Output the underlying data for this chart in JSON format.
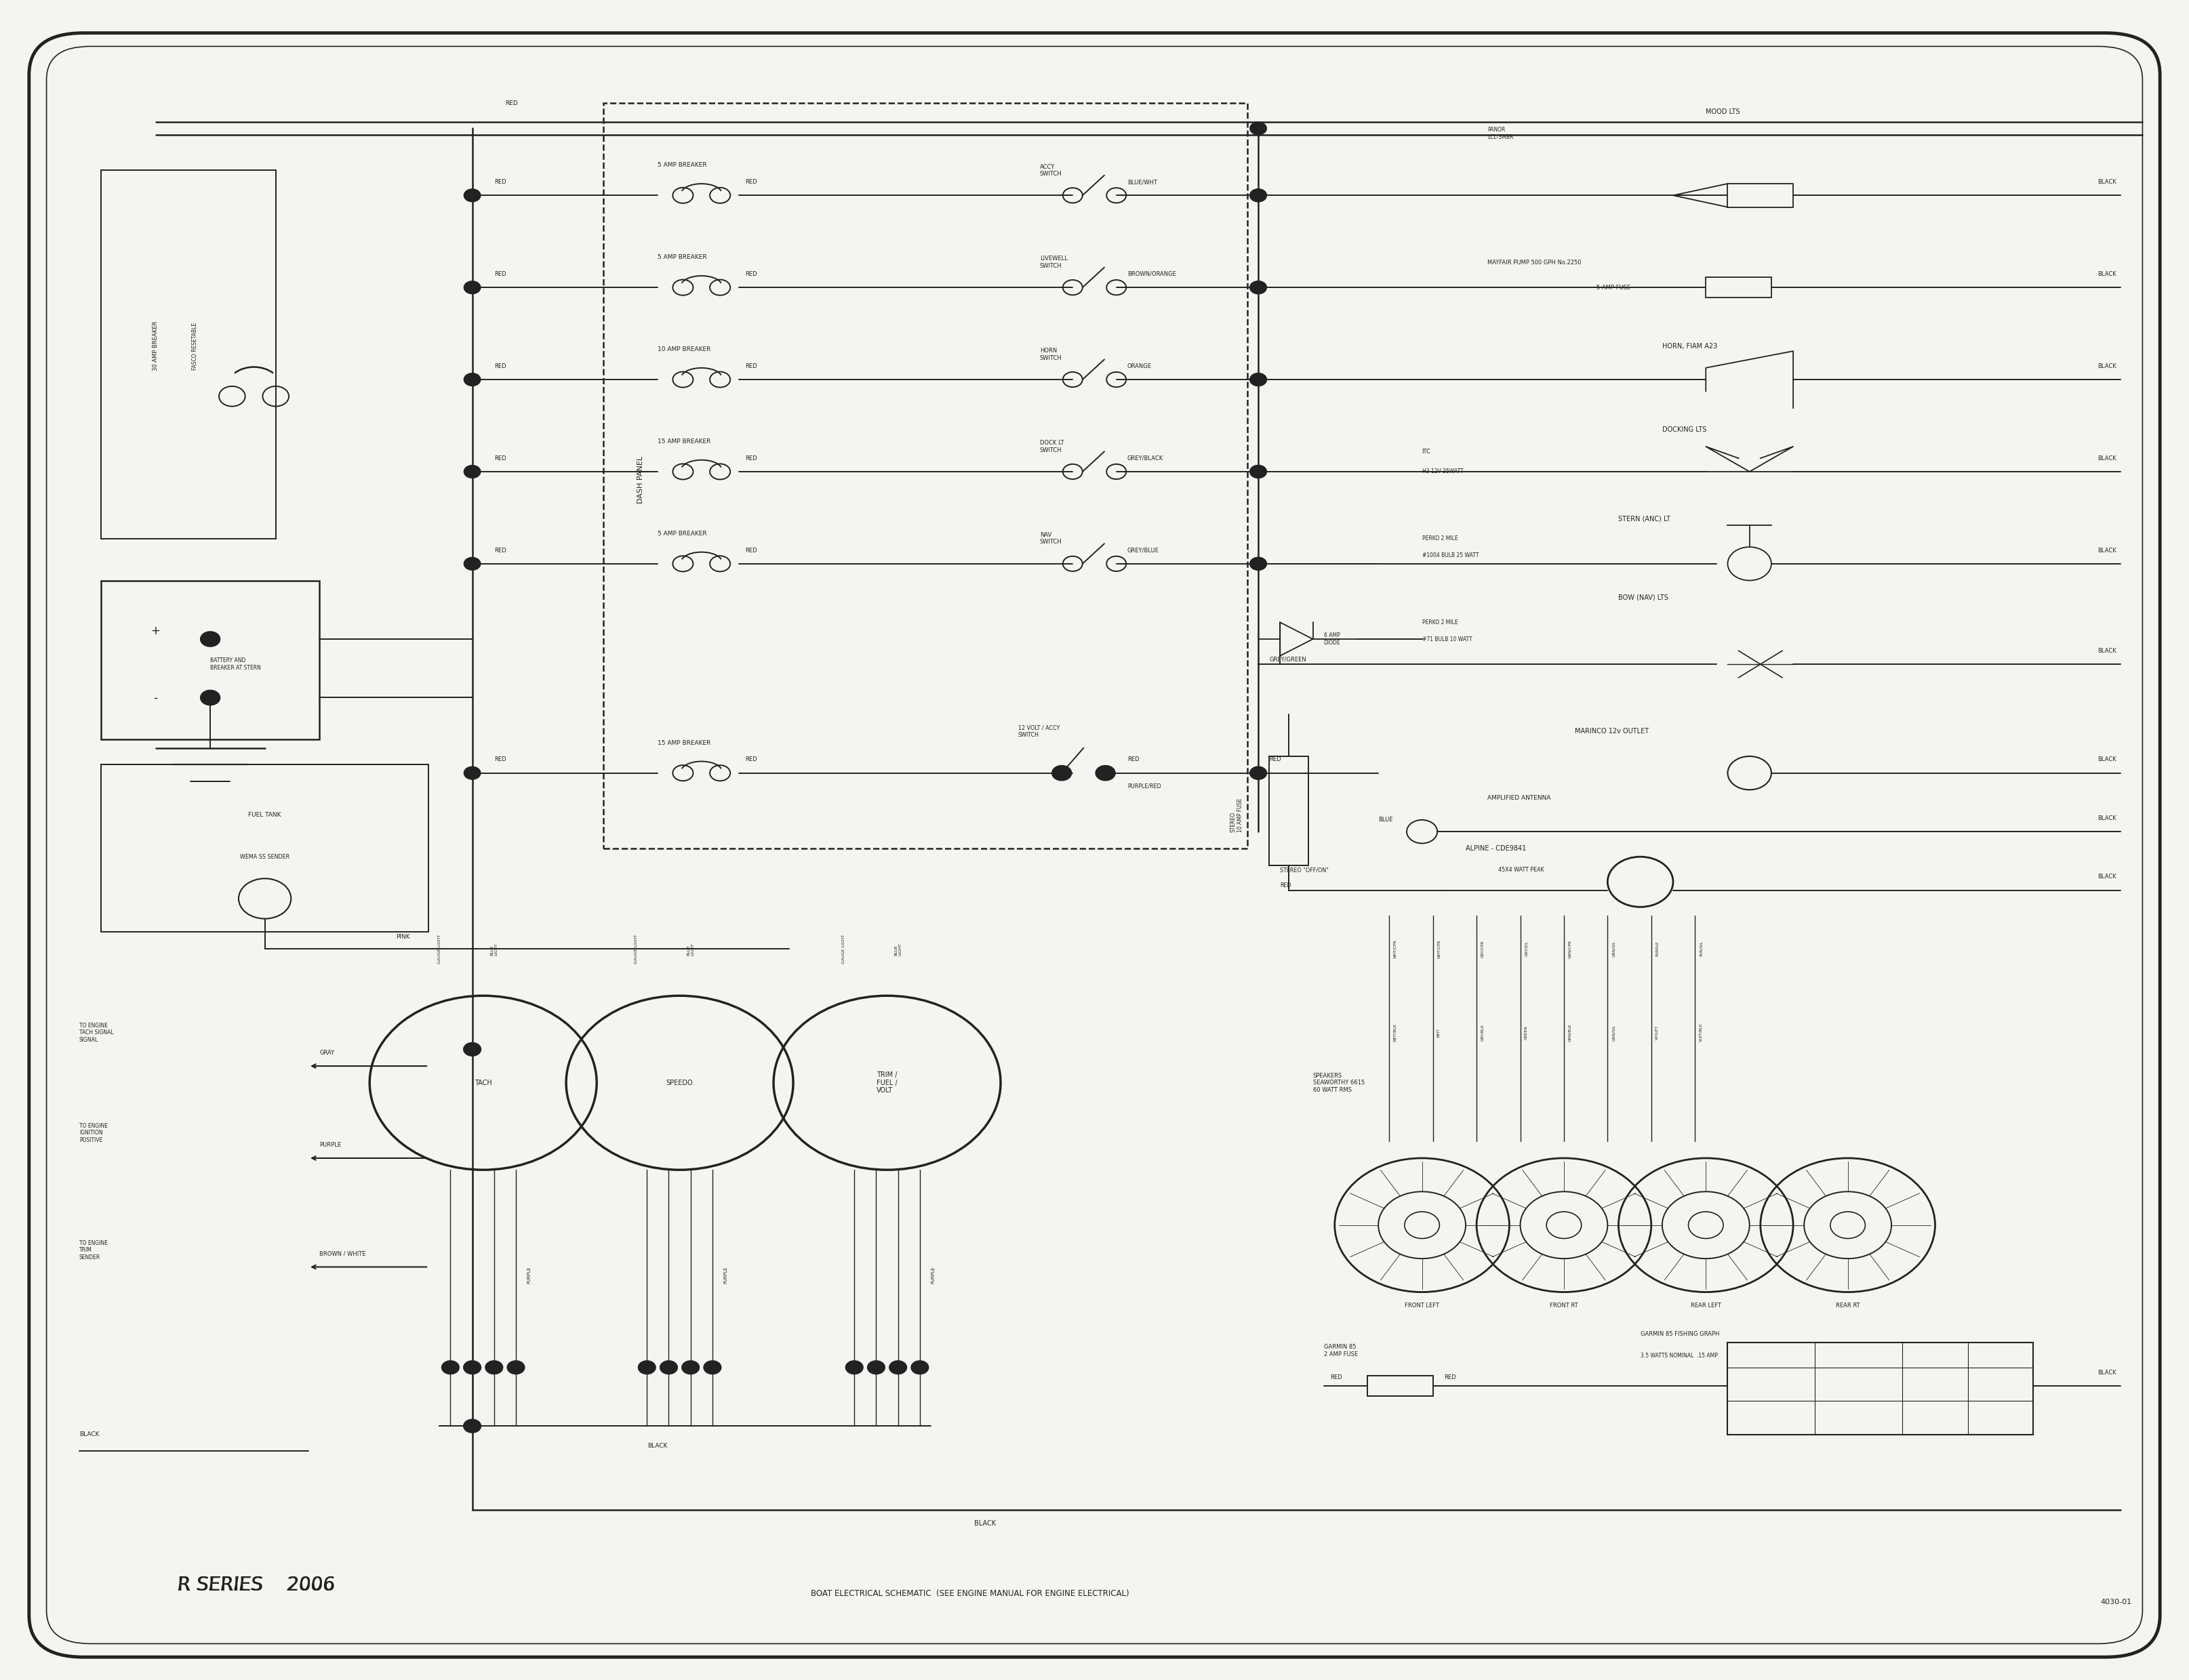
{
  "bg_color": "#f5f4f1",
  "line_color": "#222222",
  "fig_width": 32.29,
  "fig_height": 24.79,
  "bottom_left_text": "R SERIES    2006",
  "bottom_center_text": "BOAT ELECTRICAL SCHEMATIC  (SEE ENGINE MANUAL FOR ENGINE ELECTRICAL)",
  "bottom_right_text": "4030-01",
  "breaker_rows": [
    {
      "y": 88.5,
      "breaker": "5 AMP BREAKER",
      "switch": "ACCY\nSWITCH",
      "wire": "BLUE/WHT"
    },
    {
      "y": 83.0,
      "breaker": "5 AMP BREAKER",
      "switch": "LIVEWELL\nSWITCH",
      "wire": "BROWN/ORANGE"
    },
    {
      "y": 77.5,
      "breaker": "10 AMP BREAKER",
      "switch": "HORN\nSWITCH",
      "wire": "ORANGE"
    },
    {
      "y": 72.0,
      "breaker": "15 AMP BREAKER",
      "switch": "DOCK LT\nSWITCH",
      "wire": "GREY/BLACK"
    },
    {
      "y": 66.5,
      "breaker": "5 AMP BREAKER",
      "switch": "NAV\nSWITCH",
      "wire": "GREY/BLUE"
    }
  ],
  "speaker_names": [
    "FRONT LEFT",
    "FRONT RT",
    "REAR LEFT",
    "REAR RT"
  ]
}
